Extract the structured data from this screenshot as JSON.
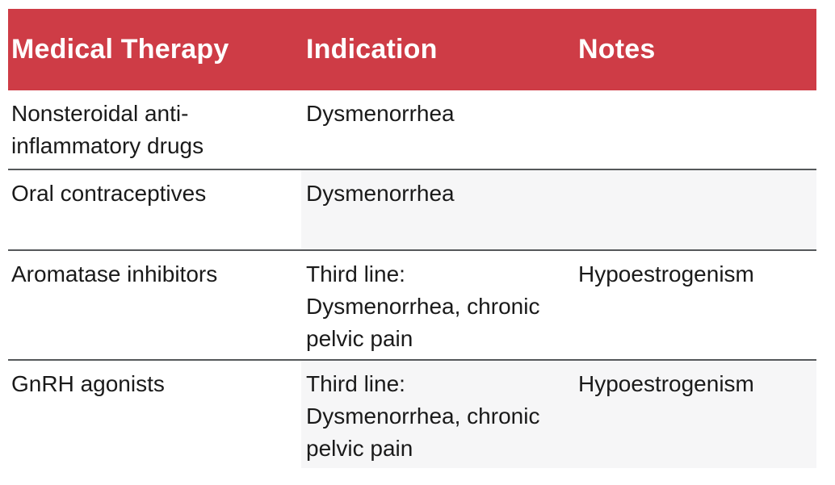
{
  "colors": {
    "header_bg": "#ce3c46",
    "header_text": "#ffffff",
    "row_stripe": "#f6f6f7",
    "divider": "#55585a",
    "body_text": "#1a1a1a",
    "page_bg": "#ffffff"
  },
  "table": {
    "columns": [
      {
        "id": "therapy",
        "label": "Medical Therapy"
      },
      {
        "id": "indication",
        "label": "Indication"
      },
      {
        "id": "notes",
        "label": "Notes"
      }
    ],
    "rows": [
      {
        "therapy": "Nonsteroidal anti-inflammatory drugs",
        "indication": "Dysmenorrhea",
        "notes": ""
      },
      {
        "therapy": "Oral contraceptives",
        "indication": "Dysmenorrhea",
        "notes": ""
      },
      {
        "therapy": "Aromatase inhibitors",
        "indication": [
          "Third line:",
          "Dysmenorrhea, chronic pelvic pain"
        ],
        "notes": "Hypoestrogenism"
      },
      {
        "therapy": "GnRH agonists",
        "indication": [
          "Third line:",
          "Dysmenorrhea, chronic pelvic pain"
        ],
        "notes": "Hypoestrogenism"
      }
    ]
  }
}
